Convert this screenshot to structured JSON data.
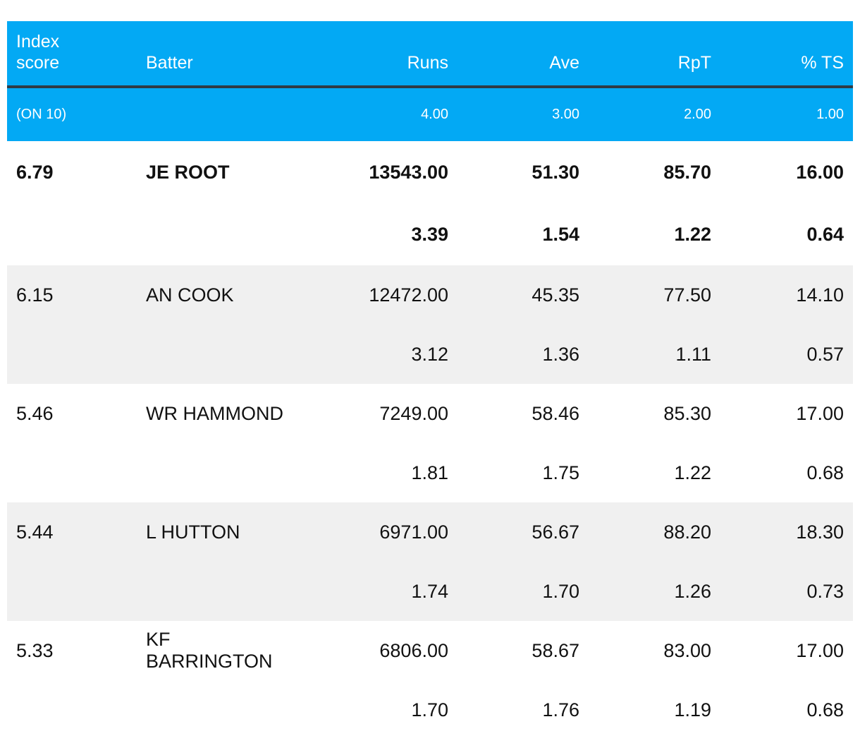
{
  "headers": {
    "index_score": "Index\nscore",
    "batter": "Batter",
    "runs": "Runs",
    "ave": "Ave",
    "rpt": "RpT",
    "ts": "% TS"
  },
  "weights": {
    "label": "(ON 10)",
    "runs": "4.00",
    "ave": "3.00",
    "rpt": "2.00",
    "ts": "1.00"
  },
  "rows": [
    {
      "index": "6.79",
      "batter": "JE ROOT",
      "runs": "13543.00",
      "ave": "51.30",
      "rpt": "85.70",
      "ts": "16.00",
      "runs_score": "3.39",
      "ave_score": "1.54",
      "rpt_score": "1.22",
      "ts_score": "0.64"
    },
    {
      "index": "6.15",
      "batter": "AN COOK",
      "runs": "12472.00",
      "ave": "45.35",
      "rpt": "77.50",
      "ts": "14.10",
      "runs_score": "3.12",
      "ave_score": "1.36",
      "rpt_score": "1.11",
      "ts_score": "0.57"
    },
    {
      "index": "5.46",
      "batter": "WR HAMMOND",
      "runs": "7249.00",
      "ave": "58.46",
      "rpt": "85.30",
      "ts": "17.00",
      "runs_score": "1.81",
      "ave_score": "1.75",
      "rpt_score": "1.22",
      "ts_score": "0.68"
    },
    {
      "index": "5.44",
      "batter": "L HUTTON",
      "runs": "6971.00",
      "ave": "56.67",
      "rpt": "88.20",
      "ts": "18.30",
      "runs_score": "1.74",
      "ave_score": "1.70",
      "rpt_score": "1.26",
      "ts_score": "0.73"
    },
    {
      "index": "5.33",
      "batter": "KF BARRINGTON",
      "runs": "6806.00",
      "ave": "58.67",
      "rpt": "83.00",
      "ts": "17.00",
      "runs_score": "1.70",
      "ave_score": "1.76",
      "rpt_score": "1.19",
      "ts_score": "0.68"
    }
  ],
  "colors": {
    "header_bg": "#03a9f4",
    "header_rule": "#2f3b45",
    "shaded_row": "#f0f0f0"
  }
}
